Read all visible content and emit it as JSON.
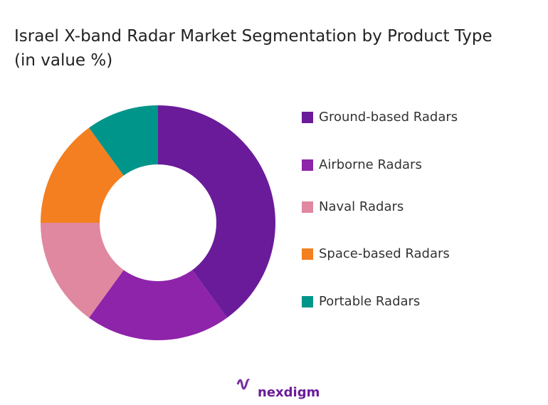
{
  "chart_data": {
    "type": "donut",
    "title": "Israel X-band Radar Market Segmentation by Product Type (in value %)",
    "categories": [
      "Ground-based Radars",
      "Airborne Radars",
      "Naval Radars",
      "Space-based Radars",
      "Portable Radars"
    ],
    "values": [
      40,
      20,
      15,
      15,
      10
    ],
    "colors": [
      "#6a1b9a",
      "#8e24aa",
      "#e088a0",
      "#f47f20",
      "#00958a"
    ],
    "legend": "right"
  },
  "logo": "nexdigm"
}
